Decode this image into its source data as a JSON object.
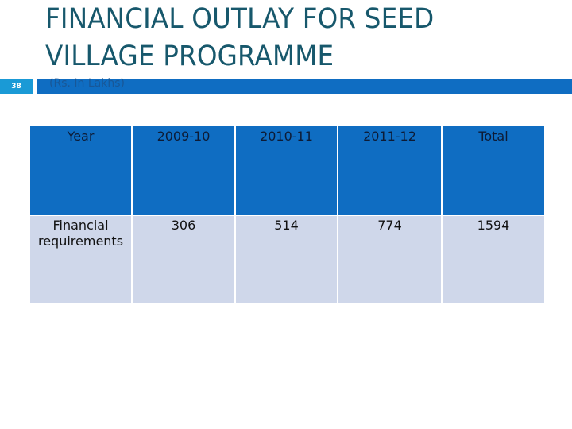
{
  "slide": {
    "title": "FINANCIAL OUTLAY FOR SEED VILLAGE PROGRAMME",
    "title_lines": [
      "FINANCIAL OUTLAY FOR SEED",
      "VILLAGE PROGRAMME"
    ],
    "slide_number": "38",
    "subtitle": "(Rs. In Lakhs)",
    "colors": {
      "title": "#17586c",
      "header_bar": "#0f6dc2",
      "slide_number_bg": "#1a9ad6",
      "table_header_bg": "#0f6dc2",
      "table_body_bg": "#cfd7ea"
    }
  },
  "table": {
    "headers": [
      "Year",
      "2009-10",
      "2010-11",
      "2011-12",
      "Total"
    ],
    "rows": [
      {
        "label": "Financial requirements",
        "values": [
          "306",
          "514",
          "774",
          "1594"
        ]
      }
    ]
  }
}
